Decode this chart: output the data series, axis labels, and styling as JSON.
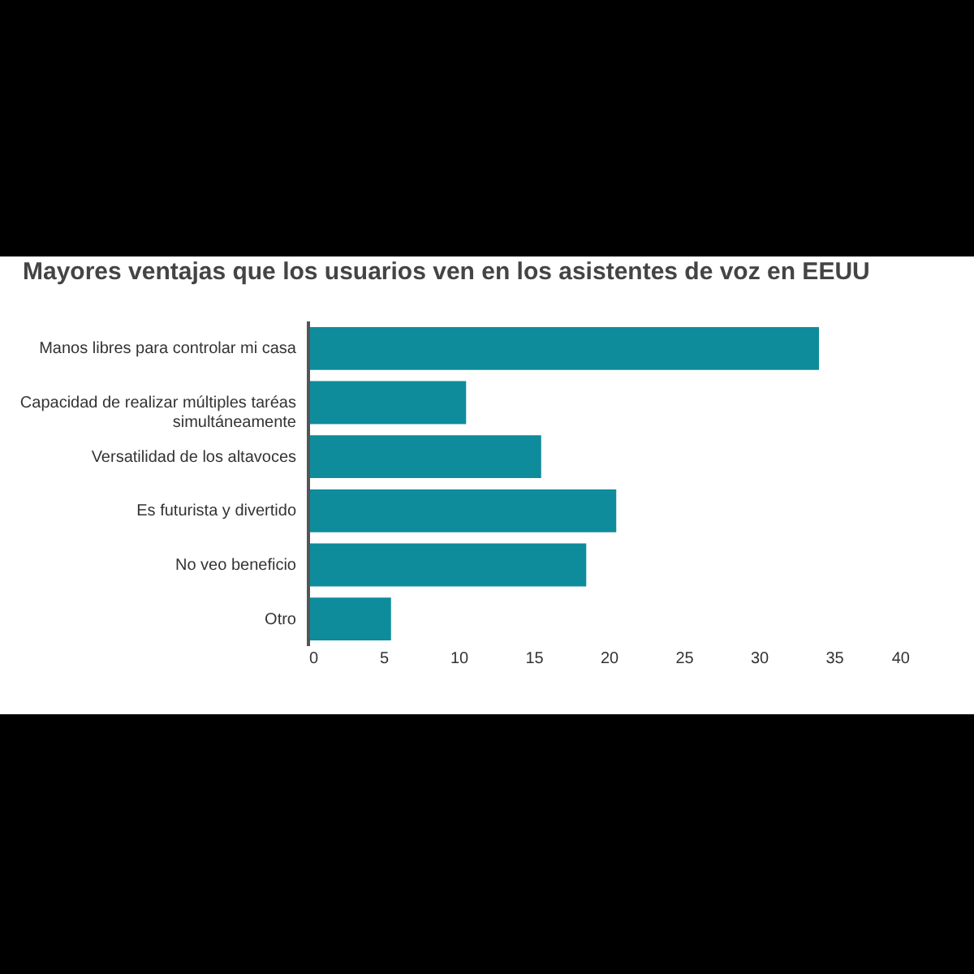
{
  "chart_data": {
    "type": "bar",
    "orientation": "horizontal",
    "title": "Mayores ventajas que los usuarios ven en los asistentes de voz en EEUU",
    "categories": [
      "Manos libres para controlar mi casa",
      "Capacidad de realizar múltiples taréas simultáneamente",
      "Versatilidad de los altavoces",
      "Es futurista y divertido",
      "No veo beneficio",
      "Otro"
    ],
    "values": [
      34,
      10.5,
      15.5,
      20.5,
      18.5,
      5.5
    ],
    "color": "#0e8c9b",
    "xlim": [
      0,
      40
    ],
    "xticks": [
      0,
      5,
      10,
      15,
      20,
      25,
      30,
      35,
      40
    ],
    "grid": false
  }
}
